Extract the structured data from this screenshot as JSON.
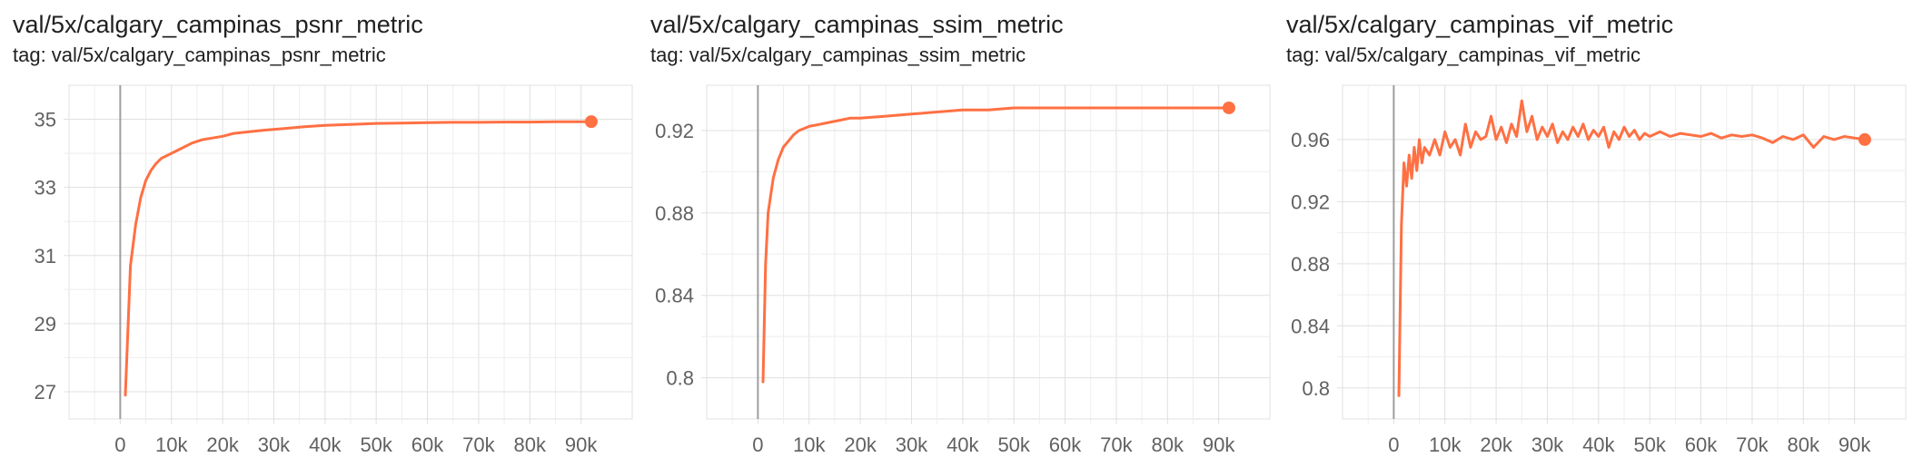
{
  "charts": [
    {
      "title": "val/5x/calgary_campinas_psnr_metric",
      "tag_prefix": "tag:",
      "tag": "val/5x/calgary_campinas_psnr_metric",
      "color": "#ff7043",
      "chart_data": {
        "type": "line",
        "x_ticks": [
          "0",
          "10k",
          "20k",
          "30k",
          "40k",
          "50k",
          "60k",
          "70k",
          "80k",
          "90k"
        ],
        "y_ticks": [
          "27",
          "29",
          "31",
          "33",
          "35"
        ],
        "xlim": [
          -10000,
          100000
        ],
        "ylim": [
          26.2,
          36.0
        ],
        "grid": true,
        "series": [
          {
            "x": [
              1000,
              1500,
              2000,
              3000,
              4000,
              5000,
              6000,
              7000,
              8000,
              10000,
              12000,
              14000,
              16000,
              18000,
              20000,
              22000,
              25000,
              28000,
              32000,
              36000,
              40000,
              45000,
              50000,
              55000,
              60000,
              65000,
              70000,
              75000,
              80000,
              85000,
              90000,
              92000
            ],
            "y": [
              26.9,
              28.8,
              30.7,
              31.9,
              32.7,
              33.2,
              33.5,
              33.7,
              33.85,
              34.0,
              34.15,
              34.3,
              34.4,
              34.45,
              34.5,
              34.58,
              34.63,
              34.68,
              34.73,
              34.78,
              34.82,
              34.85,
              34.88,
              34.89,
              34.9,
              34.91,
              34.91,
              34.92,
              34.92,
              34.93,
              34.93,
              34.93
            ]
          }
        ]
      }
    },
    {
      "title": "val/5x/calgary_campinas_ssim_metric",
      "tag_prefix": "tag:",
      "tag": "val/5x/calgary_campinas_ssim_metric",
      "color": "#ff7043",
      "chart_data": {
        "type": "line",
        "x_ticks": [
          "0",
          "10k",
          "20k",
          "30k",
          "40k",
          "50k",
          "60k",
          "70k",
          "80k",
          "90k"
        ],
        "y_ticks": [
          "0.8",
          "0.84",
          "0.88",
          "0.92"
        ],
        "xlim": [
          -10000,
          100000
        ],
        "ylim": [
          0.78,
          0.942
        ],
        "grid": true,
        "series": [
          {
            "x": [
              1000,
              1500,
              2000,
              3000,
              4000,
              5000,
              6000,
              7000,
              8000,
              10000,
              12000,
              14000,
              16000,
              18000,
              20000,
              25000,
              30000,
              35000,
              40000,
              45000,
              50000,
              55000,
              60000,
              65000,
              70000,
              75000,
              80000,
              85000,
              90000,
              92000
            ],
            "y": [
              0.798,
              0.855,
              0.88,
              0.897,
              0.906,
              0.912,
              0.915,
              0.918,
              0.92,
              0.922,
              0.923,
              0.924,
              0.925,
              0.926,
              0.926,
              0.927,
              0.928,
              0.929,
              0.93,
              0.93,
              0.931,
              0.931,
              0.931,
              0.931,
              0.931,
              0.931,
              0.931,
              0.931,
              0.931,
              0.931
            ]
          }
        ]
      }
    },
    {
      "title": "val/5x/calgary_campinas_vif_metric",
      "tag_prefix": "tag:",
      "tag": "val/5x/calgary_campinas_vif_metric",
      "color": "#ff7043",
      "chart_data": {
        "type": "line",
        "x_ticks": [
          "0",
          "10k",
          "20k",
          "30k",
          "40k",
          "50k",
          "60k",
          "70k",
          "80k",
          "90k"
        ],
        "y_ticks": [
          "0.8",
          "0.84",
          "0.88",
          "0.92",
          "0.96"
        ],
        "xlim": [
          -10000,
          100000
        ],
        "ylim": [
          0.78,
          0.995
        ],
        "grid": true,
        "series": [
          {
            "x": [
              1000,
              1500,
              2000,
              2500,
              3000,
              3500,
              4000,
              4500,
              5000,
              5500,
              6000,
              7000,
              8000,
              9000,
              10000,
              11000,
              12000,
              13000,
              14000,
              15000,
              16000,
              17000,
              18000,
              19000,
              20000,
              21000,
              22000,
              23000,
              24000,
              25000,
              26000,
              27000,
              28000,
              29000,
              30000,
              31000,
              32000,
              33000,
              34000,
              35000,
              36000,
              37000,
              38000,
              39000,
              40000,
              41000,
              42000,
              43000,
              44000,
              45000,
              46000,
              47000,
              48000,
              49000,
              50000,
              52000,
              54000,
              56000,
              58000,
              60000,
              62000,
              64000,
              66000,
              68000,
              70000,
              72000,
              74000,
              76000,
              78000,
              80000,
              82000,
              84000,
              86000,
              88000,
              90000,
              92000
            ],
            "y": [
              0.795,
              0.905,
              0.945,
              0.93,
              0.95,
              0.935,
              0.955,
              0.94,
              0.96,
              0.945,
              0.955,
              0.95,
              0.96,
              0.95,
              0.965,
              0.955,
              0.96,
              0.95,
              0.97,
              0.955,
              0.965,
              0.96,
              0.962,
              0.975,
              0.96,
              0.968,
              0.958,
              0.97,
              0.962,
              0.985,
              0.965,
              0.975,
              0.96,
              0.968,
              0.962,
              0.97,
              0.958,
              0.965,
              0.96,
              0.968,
              0.962,
              0.97,
              0.96,
              0.966,
              0.962,
              0.968,
              0.955,
              0.965,
              0.96,
              0.968,
              0.962,
              0.966,
              0.96,
              0.964,
              0.962,
              0.965,
              0.962,
              0.964,
              0.963,
              0.962,
              0.964,
              0.961,
              0.963,
              0.962,
              0.963,
              0.961,
              0.958,
              0.962,
              0.96,
              0.963,
              0.955,
              0.962,
              0.96,
              0.962,
              0.961,
              0.96
            ]
          }
        ]
      }
    }
  ]
}
